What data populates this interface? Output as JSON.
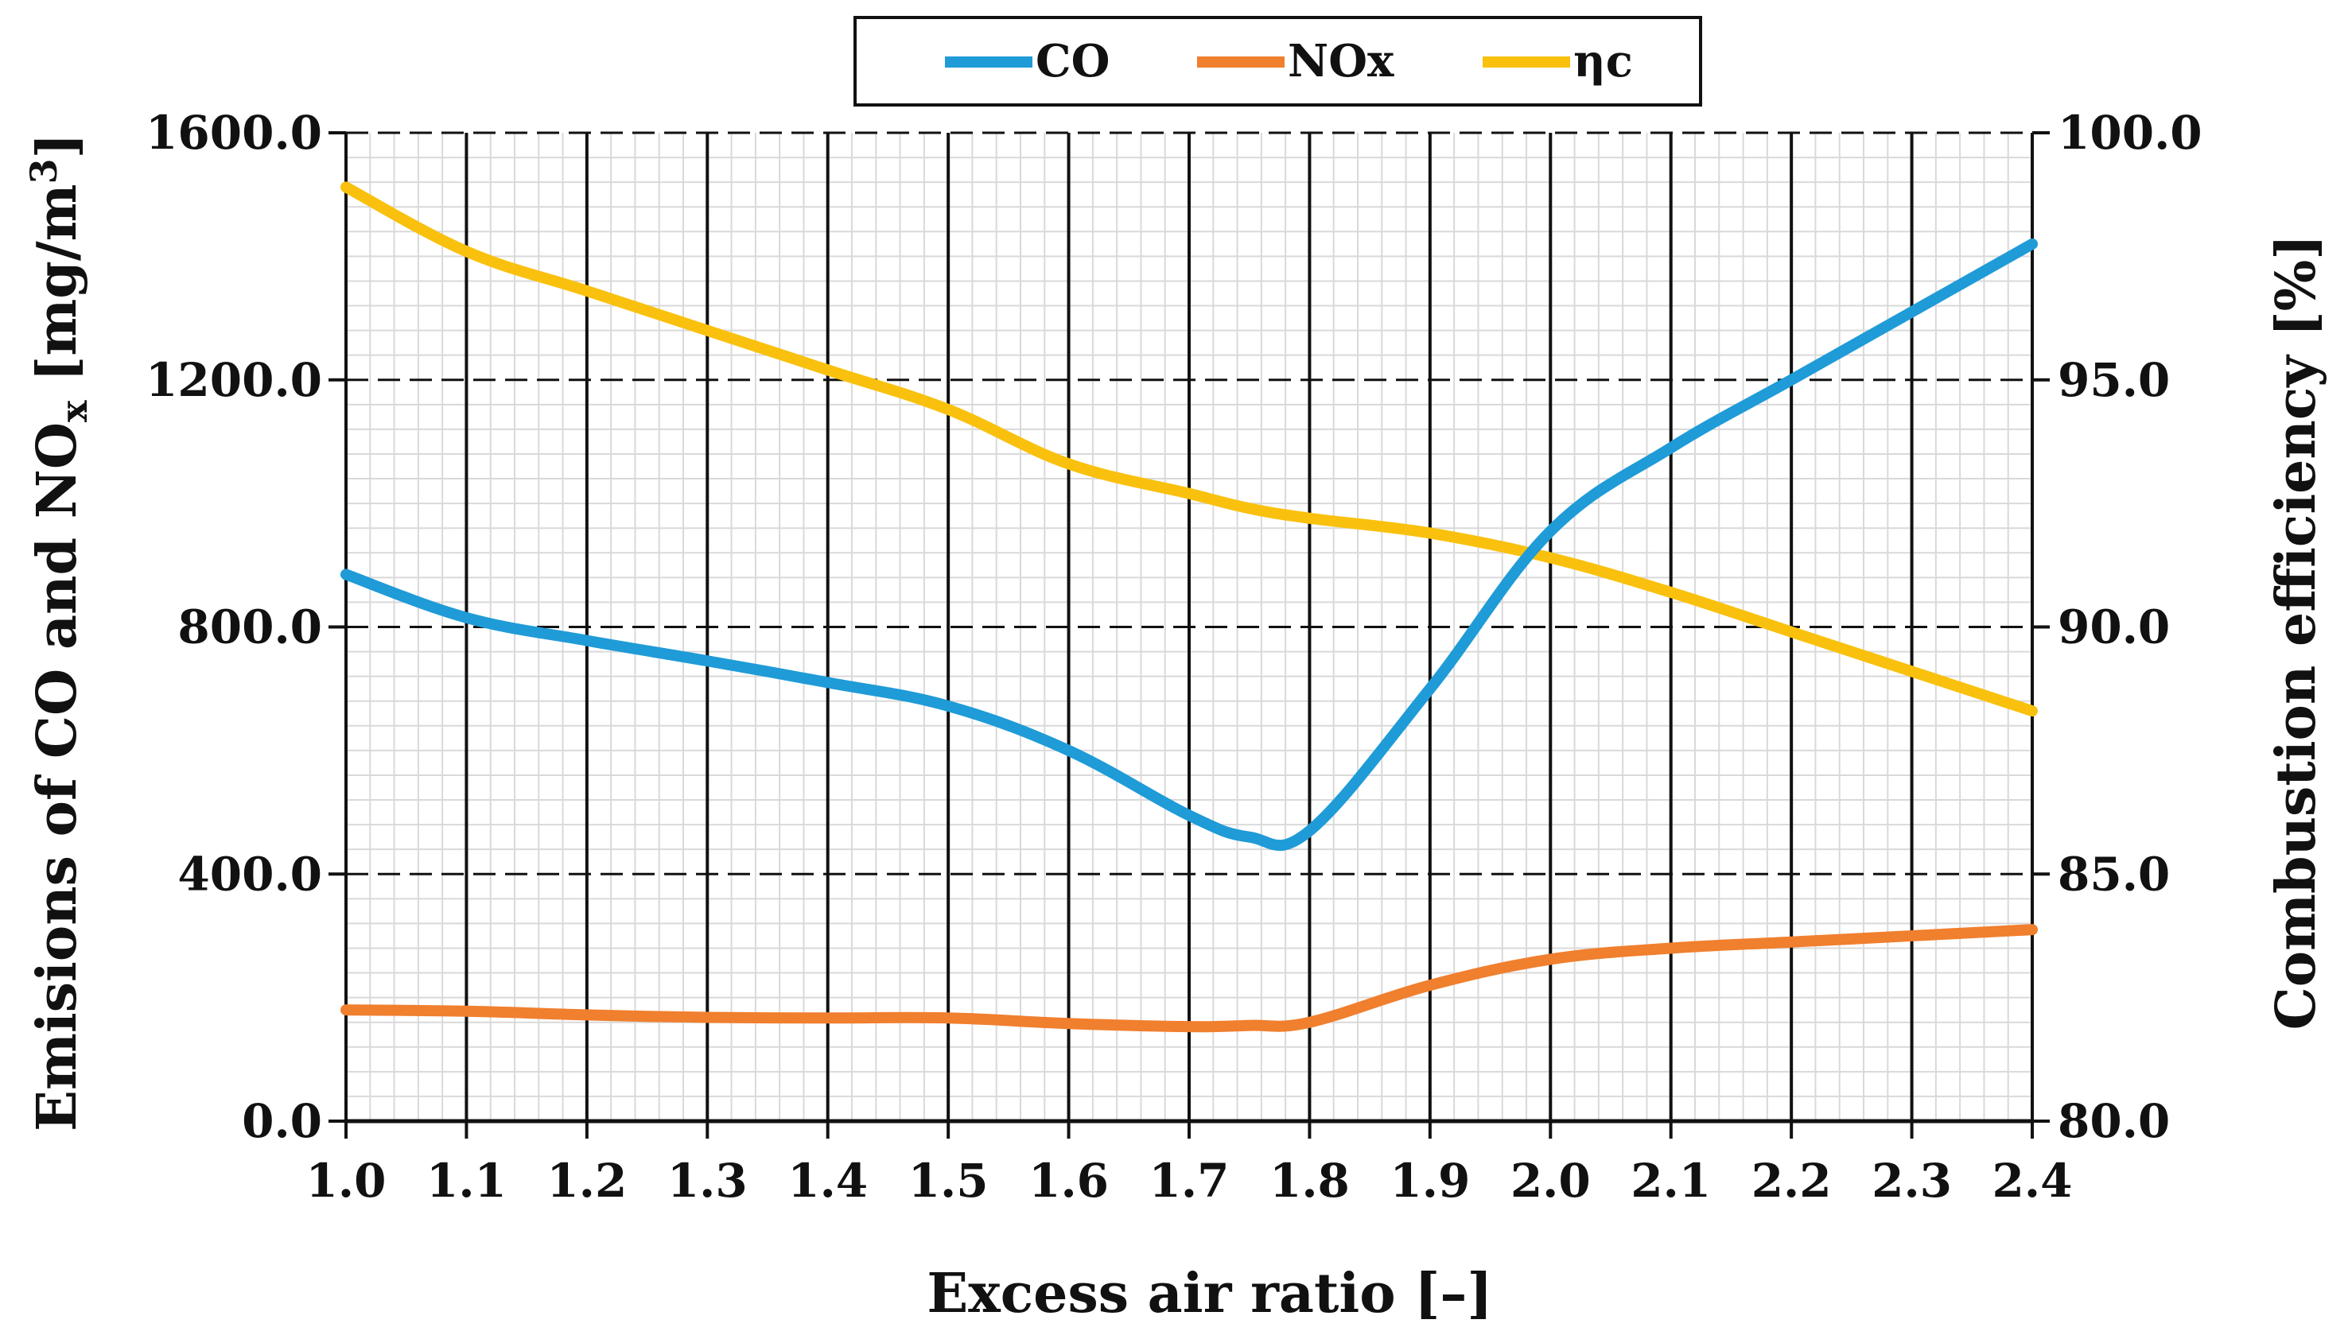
{
  "chart_data": {
    "type": "line",
    "x": [
      1.0,
      1.1,
      1.2,
      1.3,
      1.4,
      1.5,
      1.6,
      1.7,
      1.75,
      1.8,
      1.9,
      2.0,
      2.1,
      2.2,
      2.3,
      2.4
    ],
    "series": [
      {
        "name": "CO",
        "axis": "left",
        "color": "#1f9bd7",
        "values": [
          885,
          815,
          778,
          745,
          710,
          672,
          600,
          495,
          460,
          470,
          700,
          955,
          1090,
          1200,
          1310,
          1420
        ]
      },
      {
        "name": "NOx",
        "axis": "left",
        "color": "#f07f2e",
        "values": [
          180,
          178,
          172,
          168,
          167,
          167,
          158,
          153,
          155,
          160,
          220,
          262,
          280,
          290,
          300,
          310
        ]
      },
      {
        "name": "ηc",
        "axis": "right",
        "color": "#f9c10e",
        "values": [
          98.9,
          97.6,
          96.8,
          96.0,
          95.2,
          94.4,
          93.3,
          92.7,
          92.4,
          92.2,
          91.9,
          91.4,
          90.7,
          89.9,
          89.1,
          88.3
        ]
      }
    ],
    "xlabel": "Excess air ratio [–]",
    "ylabel_left_parts": [
      "Emisions of CO and NO",
      "x",
      " [mg/m",
      "3",
      "]"
    ],
    "ylabel_right": "Combustion efficiency [%]",
    "xlim": [
      1.0,
      2.4
    ],
    "ylim_left": [
      0,
      1600
    ],
    "ylim_right": [
      80,
      100
    ],
    "x_ticks": [
      "1.0",
      "1.1",
      "1.2",
      "1.3",
      "1.4",
      "1.5",
      "1.6",
      "1.7",
      "1.8",
      "1.9",
      "2.0",
      "2.1",
      "2.2",
      "2.3",
      "2.4"
    ],
    "y_ticks_left": [
      "0.0",
      "400.0",
      "800.0",
      "1200.0",
      "1600.0"
    ],
    "y_ticks_right": [
      "80.0",
      "85.0",
      "90.0",
      "95.0",
      "100.0"
    ],
    "legend": [
      "CO",
      "NOx",
      "ηc"
    ],
    "legend_position": "top-center",
    "grid": true
  }
}
